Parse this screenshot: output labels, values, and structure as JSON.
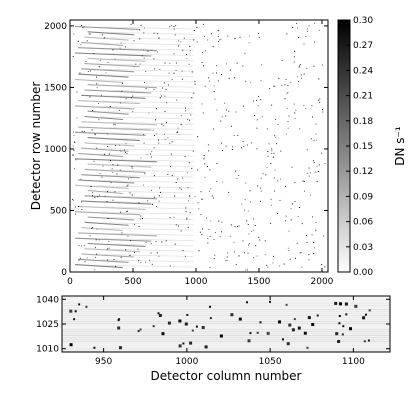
{
  "chart_data": [
    {
      "type": "heatmap",
      "panel": "full detector image",
      "xlabel": "",
      "ylabel": "Detector row number",
      "xlim": [
        0,
        2048
      ],
      "ylim": [
        0,
        2048
      ],
      "xticks": [
        0,
        500,
        1000,
        1500,
        2000
      ],
      "yticks": [
        0,
        500,
        1000,
        1500,
        2000
      ],
      "colormap": "gray_r",
      "pattern": "diagonal gray spectral traces concentrated at columns below ~700, with scattered dark pixels across the field",
      "colorbar": {
        "label": "DN s⁻¹",
        "range": [
          0.0,
          0.3
        ],
        "ticks": [
          "0.00",
          "0.03",
          "0.06",
          "0.09",
          "0.12",
          "0.15",
          "0.18",
          "0.21",
          "0.24",
          "0.27",
          "0.30"
        ]
      }
    },
    {
      "type": "heatmap",
      "panel": "zoomed strip",
      "xlabel": "Detector column number",
      "ylabel": "",
      "xlim": [
        925,
        1122
      ],
      "ylim": [
        1008,
        1042
      ],
      "xticks": [
        950,
        1000,
        1050,
        1100
      ],
      "yticks": [
        1010,
        1025,
        1040
      ],
      "pattern": "faint horizontal bands with isolated dark pixels"
    }
  ]
}
